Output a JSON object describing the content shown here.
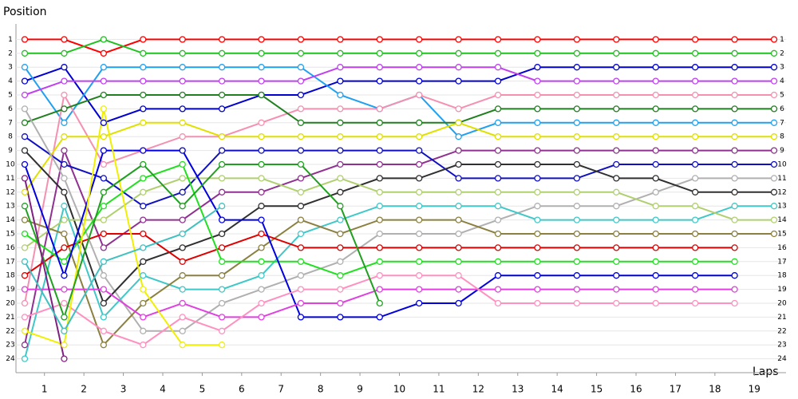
{
  "chart_data": {
    "type": "line",
    "y_label": "Position",
    "x_label": "Laps",
    "x": [
      0,
      1,
      2,
      3,
      4,
      5,
      6,
      7,
      8,
      9,
      10,
      11,
      12,
      13,
      14,
      15,
      16,
      17,
      18,
      19
    ],
    "xlim": [
      0,
      19
    ],
    "xticks": [
      {
        "value": 0.5,
        "label": "1"
      },
      {
        "value": 1.5,
        "label": "2"
      },
      {
        "value": 2.5,
        "label": "3"
      },
      {
        "value": 3.5,
        "label": "4"
      },
      {
        "value": 4.5,
        "label": "5"
      },
      {
        "value": 5.5,
        "label": "6"
      },
      {
        "value": 6.5,
        "label": "7"
      },
      {
        "value": 7.5,
        "label": "8"
      },
      {
        "value": 8.5,
        "label": "9"
      },
      {
        "value": 9.5,
        "label": "10"
      },
      {
        "value": 10.5,
        "label": "11"
      },
      {
        "value": 11.5,
        "label": "12"
      },
      {
        "value": 12.5,
        "label": "13"
      },
      {
        "value": 13.5,
        "label": "14"
      },
      {
        "value": 14.5,
        "label": "15"
      },
      {
        "value": 15.5,
        "label": "16"
      },
      {
        "value": 16.5,
        "label": "17"
      },
      {
        "value": 17.5,
        "label": "18"
      },
      {
        "value": 18.5,
        "label": "19"
      }
    ],
    "ylim": [
      25,
      0
    ],
    "yticks": [
      1,
      2,
      3,
      4,
      5,
      6,
      7,
      8,
      9,
      10,
      11,
      12,
      13,
      14,
      15,
      16,
      17,
      18,
      19,
      20,
      21,
      22,
      23,
      24
    ],
    "grid": true,
    "series": [
      {
        "color": "#ff0000",
        "values": [
          1,
          1,
          2,
          1,
          1,
          1,
          1,
          1,
          1,
          1,
          1,
          1,
          1,
          1,
          1,
          1,
          1,
          1,
          1,
          1
        ]
      },
      {
        "color": "#20c020",
        "values": [
          2,
          2,
          1,
          2,
          2,
          2,
          2,
          2,
          2,
          2,
          2,
          2,
          2,
          2,
          2,
          2,
          2,
          2,
          2,
          2
        ]
      },
      {
        "color": "#0000d0",
        "values": [
          4,
          3,
          7,
          6,
          6,
          6,
          5,
          5,
          4,
          4,
          4,
          4,
          4,
          3,
          3,
          3,
          3,
          3,
          3,
          3
        ]
      },
      {
        "color": "#20a0f0",
        "values": [
          3,
          7,
          3,
          3,
          3,
          3,
          3,
          3,
          5,
          6,
          5,
          8,
          7,
          7,
          7,
          7,
          7,
          7,
          7,
          7
        ]
      },
      {
        "color": "#c040f0",
        "values": [
          5,
          4,
          4,
          4,
          4,
          4,
          4,
          4,
          3,
          3,
          3,
          3,
          3,
          4,
          4,
          4,
          4,
          4,
          4,
          4
        ]
      },
      {
        "color": "#f590b0",
        "values": [
          20,
          5,
          10,
          9,
          8,
          8,
          7,
          6,
          6,
          6,
          5,
          6,
          5,
          5,
          5,
          5,
          5,
          5,
          5,
          5
        ]
      },
      {
        "color": "#208020",
        "values": [
          7,
          6,
          5,
          5,
          5,
          5,
          5,
          7,
          7,
          7,
          7,
          7,
          6,
          6,
          6,
          6,
          6,
          6,
          6,
          6
        ]
      },
      {
        "color": "#e0e000",
        "values": [
          12,
          8,
          8,
          7,
          7,
          8,
          8,
          8,
          8,
          8,
          8,
          7,
          8,
          8,
          8,
          8,
          8,
          8,
          8,
          8
        ]
      },
      {
        "color": "#903090",
        "values": [
          23,
          9,
          16,
          14,
          14,
          12,
          12,
          11,
          10,
          10,
          10,
          9,
          9,
          9,
          9,
          9,
          9,
          9,
          9,
          9
        ]
      },
      {
        "color": "#1010c0",
        "values": [
          8,
          10,
          11,
          13,
          12,
          9,
          9,
          9,
          9,
          9,
          9,
          11,
          11,
          11,
          11,
          10,
          10,
          10,
          10,
          10
        ]
      },
      {
        "color": "#b0b0b0",
        "values": [
          6,
          11,
          18,
          22,
          22,
          20,
          19,
          18,
          17,
          15,
          15,
          15,
          14,
          13,
          13,
          13,
          12,
          11,
          11,
          11
        ]
      },
      {
        "color": "#303030",
        "values": [
          9,
          12,
          20,
          17,
          16,
          15,
          13,
          13,
          12,
          11,
          11,
          10,
          10,
          10,
          10,
          11,
          11,
          12,
          12,
          12
        ]
      },
      {
        "color": "#40c8c8",
        "values": [
          24,
          13,
          21,
          18,
          19,
          19,
          18,
          15,
          14,
          13,
          13,
          13,
          13,
          14,
          14,
          14,
          14,
          14,
          13,
          13
        ]
      },
      {
        "color": "#b0d070",
        "values": [
          16,
          14,
          14,
          12,
          11,
          11,
          11,
          12,
          11,
          12,
          12,
          12,
          12,
          12,
          12,
          12,
          13,
          13,
          14,
          14
        ]
      },
      {
        "color": "#8b8040",
        "values": [
          14,
          15,
          23,
          20,
          18,
          18,
          16,
          14,
          15,
          14,
          14,
          14,
          15,
          15,
          15,
          15,
          15,
          15,
          15,
          15
        ]
      },
      {
        "color": "#e00000",
        "values": [
          18,
          16,
          15,
          15,
          17,
          16,
          15,
          16,
          16,
          16,
          16,
          16,
          16,
          16,
          16,
          16,
          16,
          16,
          16,
          null
        ]
      },
      {
        "color": "#20e020",
        "values": [
          15,
          17,
          13,
          11,
          10,
          17,
          17,
          17,
          18,
          17,
          17,
          17,
          17,
          17,
          17,
          17,
          17,
          17,
          17,
          null
        ]
      },
      {
        "color": "#0000e0",
        "values": [
          10,
          18,
          9,
          9,
          9,
          14,
          14,
          21,
          21,
          21,
          20,
          20,
          18,
          18,
          18,
          18,
          18,
          18,
          18,
          null
        ]
      },
      {
        "color": "#e040e0",
        "values": [
          19,
          19,
          19,
          21,
          20,
          21,
          21,
          20,
          20,
          19,
          19,
          19,
          19,
          19,
          19,
          19,
          19,
          19,
          19,
          null
        ]
      },
      {
        "color": "#ff90c0",
        "values": [
          21,
          20,
          22,
          23,
          21,
          22,
          20,
          19,
          19,
          18,
          18,
          18,
          20,
          20,
          20,
          20,
          20,
          20,
          20,
          null
        ]
      },
      {
        "color": "#f0f000",
        "values": [
          22,
          23,
          6,
          19,
          23,
          23,
          null,
          null,
          null,
          null,
          null,
          null,
          null,
          null,
          null,
          null,
          null,
          null,
          null,
          null
        ]
      },
      {
        "color": "#20a020",
        "values": [
          13,
          21,
          12,
          10,
          13,
          10,
          10,
          10,
          13,
          20,
          null,
          null,
          null,
          null,
          null,
          null,
          null,
          null,
          null,
          null
        ]
      },
      {
        "color": "#802080",
        "values": [
          11,
          24,
          null,
          null,
          null,
          null,
          null,
          null,
          null,
          null,
          null,
          null,
          null,
          null,
          null,
          null,
          null,
          null,
          null,
          null
        ]
      },
      {
        "color": "#40c0c0",
        "values": [
          17,
          22,
          17,
          16,
          15,
          13,
          null,
          null,
          null,
          null,
          null,
          null,
          null,
          null,
          null,
          null,
          null,
          null,
          null,
          null
        ]
      }
    ]
  }
}
